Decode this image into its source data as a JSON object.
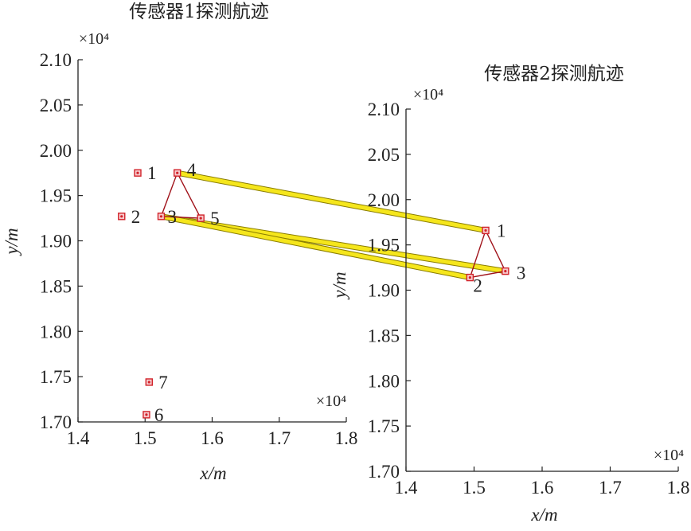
{
  "chart_data": [
    {
      "type": "scatter",
      "title": "传感器1探测航迹",
      "xlabel": "x/m",
      "ylabel": "y/m",
      "x_exponent_label": "×10⁴",
      "y_exponent_label": "×10⁴",
      "xlim": [
        1.4,
        1.8
      ],
      "ylim": [
        1.7,
        2.1
      ],
      "x_ticks": [
        "1.4",
        "1.5",
        "1.6",
        "1.7",
        "1.8"
      ],
      "y_ticks": [
        "1.70",
        "1.75",
        "1.80",
        "1.85",
        "1.90",
        "1.95",
        "2.00",
        "2.05",
        "2.10"
      ],
      "points": [
        {
          "label": "1",
          "x": 1.489,
          "y": 1.975
        },
        {
          "label": "2",
          "x": 1.465,
          "y": 1.927
        },
        {
          "label": "3",
          "x": 1.524,
          "y": 1.927
        },
        {
          "label": "4",
          "x": 1.548,
          "y": 1.975
        },
        {
          "label": "5",
          "x": 1.583,
          "y": 1.925
        },
        {
          "label": "6",
          "x": 1.502,
          "y": 1.708
        },
        {
          "label": "7",
          "x": 1.506,
          "y": 1.744
        }
      ],
      "triangle": [
        "3",
        "4",
        "5"
      ],
      "marker_color": "#d2232a",
      "edge_color": "#a0121a"
    },
    {
      "type": "scatter",
      "title": "传感器2探测航迹",
      "xlabel": "x/m",
      "ylabel": "y/m",
      "x_exponent_label": "×10⁴",
      "y_exponent_label": "×10⁴",
      "xlim": [
        1.4,
        1.8
      ],
      "ylim": [
        1.7,
        2.1
      ],
      "x_ticks": [
        "1.4",
        "1.5",
        "1.6",
        "1.7",
        "1.8"
      ],
      "y_ticks": [
        "1.70",
        "1.75",
        "1.80",
        "1.85",
        "1.90",
        "1.95",
        "2.00",
        "2.05",
        "2.10"
      ],
      "points": [
        {
          "label": "1",
          "x": 1.517,
          "y": 1.966
        },
        {
          "label": "2",
          "x": 1.494,
          "y": 1.914
        },
        {
          "label": "3",
          "x": 1.546,
          "y": 1.921
        }
      ],
      "triangle": [
        "1",
        "2",
        "3"
      ],
      "marker_color": "#d2232a",
      "edge_color": "#a0121a"
    }
  ],
  "associations": [
    {
      "from": "4",
      "to": "1"
    },
    {
      "from": "3",
      "to": "3"
    },
    {
      "from": "3",
      "to": "2"
    }
  ],
  "association_color": "#f5e61c"
}
